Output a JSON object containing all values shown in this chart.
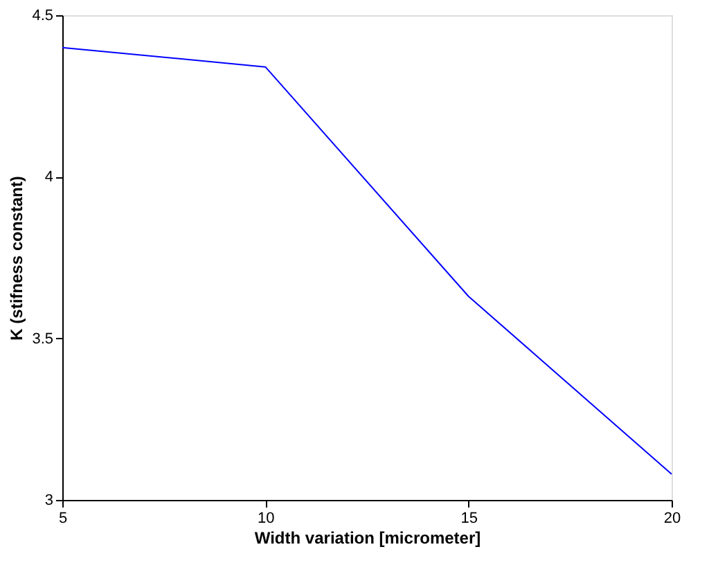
{
  "chart_data": {
    "type": "line",
    "xlabel": "Width variation [micrometer]",
    "ylabel": "K (stifness constant)",
    "x": [
      5,
      10,
      15,
      20
    ],
    "series": [
      {
        "color": "#0000ff",
        "values": [
          4.4,
          4.34,
          3.63,
          3.08
        ]
      }
    ],
    "xlim": [
      5,
      20
    ],
    "xticks": [
      5,
      10,
      15,
      20
    ],
    "ylim": [
      3,
      4.5
    ],
    "yticks": [
      3,
      3.5,
      4,
      4.5
    ],
    "grid": false,
    "marker": "none",
    "line_style": "solid"
  }
}
